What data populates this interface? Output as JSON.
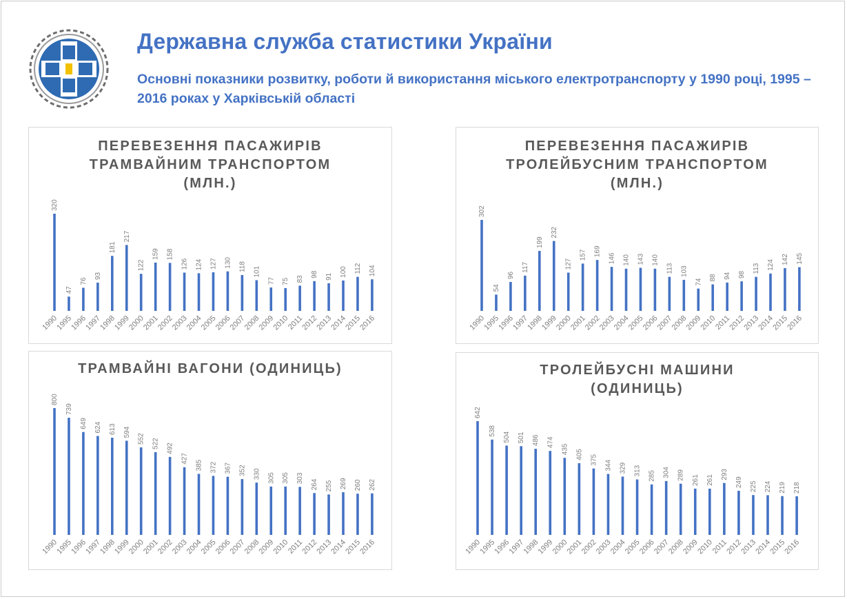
{
  "header": {
    "title": "Державна служба статистики України",
    "subtitle": "Основні показники розвитку, роботи й використання міського електротранспорту у 1990 році, 1995 – 2016 роках у Харківській області"
  },
  "colors": {
    "bar": "#4472c4",
    "title": "#4472c4",
    "label": "#7f7f7f"
  },
  "chart_data": [
    {
      "type": "bar",
      "title_lines": [
        "ПЕРЕВЕЗЕННЯ ПАСАЖИРІВ",
        "ТРАМВАЙНИМ ТРАНСПОРТОМ",
        "(МЛН.)"
      ],
      "categories": [
        "1990",
        "1995",
        "1996",
        "1997",
        "1998",
        "1999",
        "2000",
        "2001",
        "2002",
        "2003",
        "2004",
        "2005",
        "2006",
        "2007",
        "2008",
        "2009",
        "2010",
        "2011",
        "2012",
        "2013",
        "2014",
        "2015",
        "2016"
      ],
      "values": [
        320,
        47,
        76,
        93,
        181,
        217,
        122,
        159,
        158,
        126,
        124,
        127,
        130,
        118,
        101,
        77,
        75,
        83,
        98,
        91,
        100,
        112,
        104
      ],
      "ylim": [
        0,
        320
      ]
    },
    {
      "type": "bar",
      "title_lines": [
        "ПЕРЕВЕЗЕННЯ ПАСАЖИРІВ",
        "ТРОЛЕЙБУСНИМ ТРАНСПОРТОМ",
        "(МЛН.)"
      ],
      "categories": [
        "1990",
        "1995",
        "1996",
        "1997",
        "1998",
        "1999",
        "2000",
        "2001",
        "2002",
        "2003",
        "2004",
        "2005",
        "2006",
        "2007",
        "2008",
        "2009",
        "2010",
        "2011",
        "2012",
        "2013",
        "2014",
        "2015",
        "2016"
      ],
      "values": [
        302,
        54,
        96,
        117,
        199,
        232,
        127,
        157,
        169,
        146,
        140,
        143,
        140,
        113,
        103,
        74,
        88,
        94,
        98,
        113,
        124,
        142,
        145
      ],
      "ylim": [
        0,
        302
      ]
    },
    {
      "type": "bar",
      "title_lines": [
        "ТРАМВАЙНІ ВАГОНИ (ОДИНИЦЬ)"
      ],
      "categories": [
        "1990",
        "1995",
        "1996",
        "1997",
        "1998",
        "1999",
        "2000",
        "2001",
        "2002",
        "2003",
        "2004",
        "2005",
        "2006",
        "2007",
        "2008",
        "2009",
        "2010",
        "2011",
        "2012",
        "2013",
        "2014",
        "2015",
        "2016"
      ],
      "values": [
        800,
        739,
        649,
        624,
        613,
        594,
        552,
        522,
        492,
        427,
        385,
        372,
        367,
        352,
        330,
        305,
        305,
        303,
        264,
        255,
        269,
        260,
        262
      ],
      "ylim": [
        0,
        800
      ]
    },
    {
      "type": "bar",
      "title_lines": [
        "ТРОЛЕЙБУСНІ МАШИНИ",
        "(ОДИНИЦЬ)"
      ],
      "categories": [
        "1990",
        "1995",
        "1996",
        "1997",
        "1998",
        "1999",
        "2000",
        "2001",
        "2002",
        "2003",
        "2004",
        "2005",
        "2006",
        "2007",
        "2008",
        "2009",
        "2010",
        "2011",
        "2012",
        "2013",
        "2014",
        "2015",
        "2016"
      ],
      "values": [
        642,
        538,
        504,
        501,
        486,
        474,
        435,
        405,
        375,
        344,
        329,
        313,
        285,
        304,
        289,
        261,
        261,
        293,
        249,
        225,
        224,
        219,
        218
      ],
      "ylim": [
        0,
        642
      ]
    }
  ]
}
